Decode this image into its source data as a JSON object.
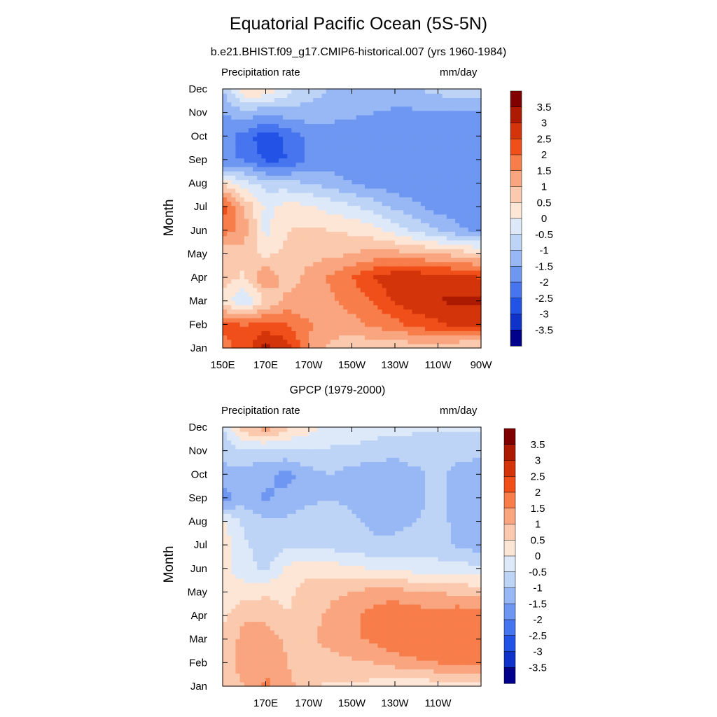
{
  "title": "Equatorial Pacific Ocean (5S-5N)",
  "units": "mm/day",
  "colorbar": {
    "labels": [
      "3.5",
      "3",
      "2.5",
      "2",
      "1.5",
      "1",
      "0.5",
      "0",
      "-0.5",
      "-1",
      "-1.5",
      "-2",
      "-2.5",
      "-3",
      "-3.5"
    ],
    "colors": [
      "#800000",
      "#ad1a02",
      "#d4340a",
      "#f04f1a",
      "#f77d4a",
      "#f9a57f",
      "#fbc9ad",
      "#fde6d6",
      "#dde9f8",
      "#bed4f6",
      "#98b8f5",
      "#6e97f2",
      "#4775ef",
      "#2352e6",
      "#0f33c8",
      "#00008b"
    ]
  },
  "chart_data": [
    {
      "type": "heatmap",
      "title": "b.e21.BHIST.f09_g17.CMIP6-historical.007 (yrs 1960-1984)",
      "left_label": "Precipitation rate",
      "right_label": "mm/day",
      "ylabel": "Month",
      "y_ticks": [
        "Jan",
        "Feb",
        "Mar",
        "Apr",
        "May",
        "Jun",
        "Jul",
        "Aug",
        "Sep",
        "Oct",
        "Nov",
        "Dec"
      ],
      "x_ticks": [
        "150E",
        "170E",
        "170W",
        "150W",
        "130W",
        "110W",
        "90W"
      ],
      "x_tick_lon": [
        150,
        170,
        190,
        210,
        230,
        250,
        270
      ],
      "xlim": [
        150,
        270
      ],
      "lon": [
        150,
        160,
        170,
        180,
        190,
        200,
        210,
        220,
        230,
        240,
        250,
        260,
        270
      ],
      "values": [
        [
          1.8,
          2.2,
          3.2,
          2.8,
          1.4,
          0.9,
          0.6,
          0.6,
          0.6,
          0.6,
          0.6,
          0.4,
          0.3
        ],
        [
          2.2,
          2.0,
          2.2,
          2.0,
          1.6,
          1.2,
          1.3,
          1.6,
          1.8,
          2.2,
          2.4,
          2.6,
          2.6
        ],
        [
          0.3,
          -0.5,
          0.5,
          1.2,
          1.0,
          1.4,
          1.7,
          2.0,
          2.6,
          2.8,
          3.0,
          3.1,
          3.1
        ],
        [
          0.8,
          0.4,
          1.5,
          0.7,
          1.2,
          1.6,
          2.0,
          2.5,
          2.9,
          2.9,
          2.8,
          2.7,
          2.5
        ],
        [
          0.6,
          0.7,
          0.4,
          0.6,
          0.8,
          0.9,
          1.0,
          1.2,
          1.2,
          1.1,
          1.0,
          0.8,
          0.6
        ],
        [
          1.7,
          1.3,
          -0.2,
          0.5,
          0.6,
          0.5,
          0.4,
          0.2,
          -0.2,
          -0.6,
          -1.0,
          -1.4,
          -1.6
        ],
        [
          2.3,
          1.0,
          -0.1,
          0.2,
          0.1,
          -0.2,
          -0.4,
          -0.7,
          -1.1,
          -1.4,
          -1.7,
          -1.8,
          -1.8
        ],
        [
          0.4,
          -0.3,
          -0.7,
          -0.8,
          -1.0,
          -1.2,
          -1.5,
          -1.7,
          -1.8,
          -1.9,
          -1.9,
          -1.9,
          -1.9
        ],
        [
          -2.0,
          -2.0,
          -2.6,
          -2.5,
          -1.9,
          -1.8,
          -1.8,
          -1.8,
          -1.8,
          -1.8,
          -1.8,
          -1.8,
          -1.8
        ],
        [
          -1.8,
          -2.2,
          -2.9,
          -2.4,
          -1.9,
          -1.8,
          -1.8,
          -1.8,
          -1.8,
          -1.8,
          -1.8,
          -1.8,
          -1.8
        ],
        [
          -1.5,
          -1.2,
          -1.4,
          -1.2,
          -1.2,
          -1.3,
          -1.4,
          -1.5,
          -1.6,
          -1.6,
          -1.6,
          -1.6,
          -1.6
        ],
        [
          -1.0,
          0.6,
          0.5,
          -0.3,
          -0.8,
          -1.0,
          -1.2,
          -1.2,
          -1.1,
          -1.0,
          -0.8,
          -0.6,
          -0.5
        ]
      ]
    },
    {
      "type": "heatmap",
      "title": "GPCP (1979-2000)",
      "left_label": "Precipitation rate",
      "right_label": "mm/day",
      "ylabel": "Month",
      "y_ticks": [
        "Jan",
        "Feb",
        "Mar",
        "Apr",
        "May",
        "Jun",
        "Jul",
        "Aug",
        "Sep",
        "Oct",
        "Nov",
        "Dec"
      ],
      "x_ticks": [
        "170E",
        "170W",
        "150W",
        "130W",
        "110W"
      ],
      "x_tick_lon": [
        170,
        190,
        210,
        230,
        250
      ],
      "xlim": [
        150,
        270
      ],
      "lon": [
        150,
        160,
        170,
        180,
        190,
        200,
        210,
        220,
        230,
        240,
        250,
        260,
        270
      ],
      "values": [
        [
          0.8,
          1.0,
          1.6,
          1.2,
          0.6,
          0.4,
          0.4,
          0.3,
          0.1,
          0.0,
          0.2,
          0.3,
          0.3
        ],
        [
          0.7,
          1.2,
          1.4,
          1.0,
          0.6,
          0.8,
          0.9,
          1.0,
          1.2,
          1.4,
          1.5,
          1.6,
          1.5
        ],
        [
          0.6,
          1.2,
          1.3,
          0.9,
          0.9,
          1.2,
          1.4,
          1.6,
          1.9,
          1.9,
          1.9,
          2.0,
          1.8
        ],
        [
          0.4,
          0.9,
          0.9,
          0.5,
          0.8,
          1.1,
          1.4,
          1.7,
          2.0,
          1.8,
          1.7,
          1.9,
          1.7
        ],
        [
          0.1,
          0.3,
          0.4,
          0.4,
          0.7,
          0.9,
          1.0,
          1.2,
          1.2,
          1.1,
          1.0,
          0.9,
          0.8
        ],
        [
          0.2,
          -0.3,
          -0.6,
          0.1,
          0.4,
          0.3,
          0.1,
          0.0,
          -0.1,
          -0.2,
          -0.3,
          -0.3,
          -0.3
        ],
        [
          0.3,
          -0.4,
          -0.8,
          -0.6,
          -0.6,
          -0.7,
          -0.8,
          -0.9,
          -0.9,
          -0.8,
          -0.8,
          -1.1,
          -1.3
        ],
        [
          0.1,
          -0.6,
          -0.9,
          -0.9,
          -0.8,
          -0.8,
          -0.9,
          -1.1,
          -1.1,
          -1.0,
          -0.9,
          -1.1,
          -1.3
        ],
        [
          -1.8,
          -1.2,
          -1.6,
          -1.3,
          -1.1,
          -1.0,
          -1.1,
          -1.2,
          -1.2,
          -1.1,
          -0.9,
          -1.2,
          -1.2
        ],
        [
          -1.1,
          -1.2,
          -1.4,
          -1.7,
          -1.2,
          -1.0,
          -1.2,
          -1.3,
          -1.2,
          -1.1,
          -0.9,
          -1.2,
          -1.3
        ],
        [
          -0.9,
          -0.6,
          -0.7,
          -0.6,
          -0.5,
          -0.6,
          -0.6,
          -0.8,
          -0.9,
          -0.8,
          -0.8,
          -0.8,
          -0.9
        ],
        [
          -0.5,
          0.8,
          1.3,
          0.6,
          0.2,
          -0.1,
          -0.2,
          -0.2,
          -0.3,
          -0.4,
          -0.4,
          -0.4,
          -0.4
        ]
      ]
    }
  ]
}
